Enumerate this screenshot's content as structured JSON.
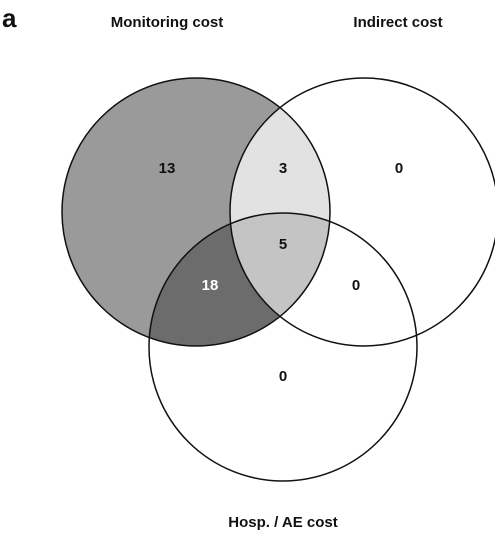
{
  "panel_label": "a",
  "sets": {
    "monitoring": "Monitoring cost",
    "indirect": "Indirect cost",
    "hosp": "Hosp. / AE cost"
  },
  "regions": {
    "monitoring_only": "13",
    "indirect_only": "0",
    "hosp_only": "0",
    "monitoring_indirect": "3",
    "monitoring_hosp": "18",
    "indirect_hosp": "0",
    "all_three": "5"
  },
  "colors": {
    "monitoring_only": "#9a9a9a",
    "monitoring_indirect": "#e2e2e2",
    "monitoring_hosp": "#6c6c6c",
    "all_three": "#c4c4c4",
    "other": "#ffffff",
    "stroke": "#111111"
  }
}
